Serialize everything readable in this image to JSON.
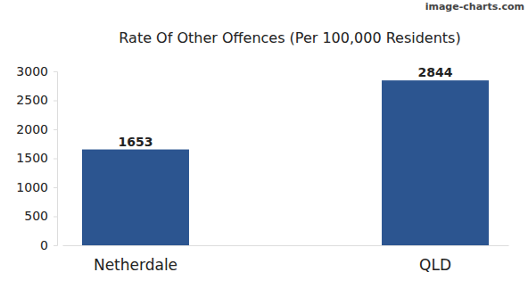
{
  "chart_data": {
    "type": "bar",
    "title": "Rate Of Other Offences (Per 100,000 Residents)",
    "annotations": [
      "image-charts.com"
    ],
    "categories": [
      "Netherdale",
      "QLD"
    ],
    "values": [
      1653,
      2844
    ],
    "color": "#2c5590",
    "ylim": [
      0,
      3000
    ],
    "yticks": [
      0,
      500,
      1000,
      1500,
      2000,
      2500,
      3000
    ],
    "grid": false,
    "data_labels": true
  }
}
